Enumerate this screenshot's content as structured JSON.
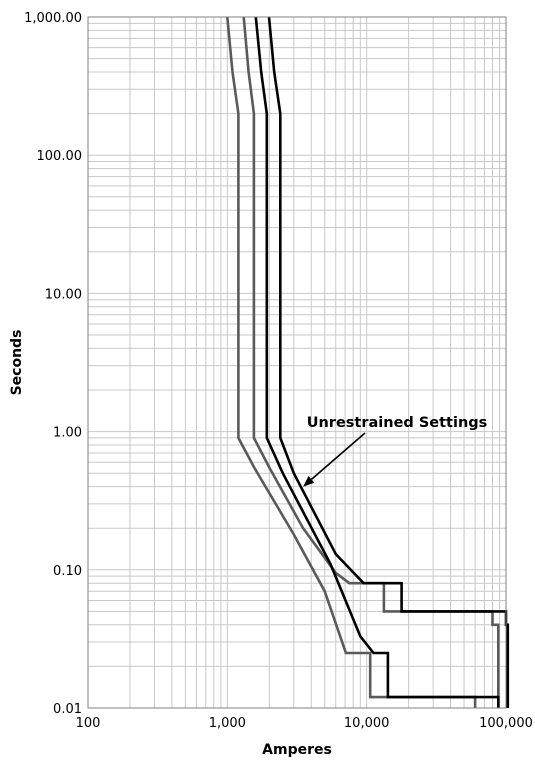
{
  "chart_data": {
    "type": "line",
    "title": "",
    "xlabel": "Amperes",
    "ylabel": "Seconds",
    "x_scale": "log",
    "y_scale": "log",
    "xlim": [
      100,
      100000
    ],
    "ylim": [
      0.01,
      1000
    ],
    "grid": true,
    "x_ticks": [
      {
        "value": 100,
        "label": "100"
      },
      {
        "value": 1000,
        "label": "1,000"
      },
      {
        "value": 10000,
        "label": "10,000"
      },
      {
        "value": 100000,
        "label": "100,000"
      }
    ],
    "y_ticks": [
      {
        "value": 0.01,
        "label": "0.01"
      },
      {
        "value": 0.1,
        "label": "0.10"
      },
      {
        "value": 1,
        "label": "1.00"
      },
      {
        "value": 10,
        "label": "10.00"
      },
      {
        "value": 100,
        "label": "100.00"
      },
      {
        "value": 1000,
        "label": "1,000.00"
      }
    ],
    "colors": {
      "gray": "#5a5a5a",
      "black": "#000000",
      "grid": "#c8c8c8",
      "border": "#808080"
    },
    "annotation": {
      "text": "Unrestrained Settings",
      "x": 3500,
      "y": 0.4
    },
    "series": [
      {
        "color": "gray",
        "points": [
          [
            1000,
            1000
          ],
          [
            1090,
            400
          ],
          [
            1200,
            200
          ],
          [
            1200,
            0.9
          ],
          [
            1560,
            0.55
          ],
          [
            3000,
            0.18
          ],
          [
            5000,
            0.07
          ],
          [
            7100,
            0.025
          ],
          [
            10600,
            0.025
          ],
          [
            10600,
            0.012
          ],
          [
            60000,
            0.012
          ],
          [
            60000,
            0.01
          ]
        ]
      },
      {
        "color": "gray",
        "points": [
          [
            1310,
            1000
          ],
          [
            1420,
            400
          ],
          [
            1550,
            200
          ],
          [
            1550,
            0.9
          ],
          [
            2000,
            0.55
          ],
          [
            3500,
            0.2
          ],
          [
            6000,
            0.095
          ],
          [
            7500,
            0.08
          ],
          [
            13300,
            0.08
          ],
          [
            13300,
            0.05
          ],
          [
            80000,
            0.05
          ],
          [
            80000,
            0.04
          ],
          [
            88000,
            0.04
          ],
          [
            88000,
            0.01
          ]
        ]
      },
      {
        "color": "black",
        "points": [
          [
            1600,
            1000
          ],
          [
            1750,
            400
          ],
          [
            1920,
            200
          ],
          [
            1920,
            0.9
          ],
          [
            2500,
            0.5
          ],
          [
            5500,
            0.11
          ],
          [
            9000,
            0.033
          ],
          [
            11200,
            0.025
          ],
          [
            14200,
            0.025
          ],
          [
            14200,
            0.012
          ],
          [
            88000,
            0.012
          ],
          [
            88000,
            0.01
          ]
        ]
      },
      {
        "color": "black",
        "points": [
          [
            1990,
            1000
          ],
          [
            2170,
            400
          ],
          [
            2400,
            200
          ],
          [
            2400,
            0.9
          ],
          [
            3000,
            0.5
          ],
          [
            6000,
            0.13
          ],
          [
            9500,
            0.08
          ],
          [
            17800,
            0.08
          ],
          [
            17800,
            0.05
          ],
          [
            100000,
            0.05
          ],
          [
            100000,
            0.04
          ],
          [
            103000,
            0.04
          ],
          [
            103000,
            0.01
          ]
        ]
      }
    ]
  }
}
